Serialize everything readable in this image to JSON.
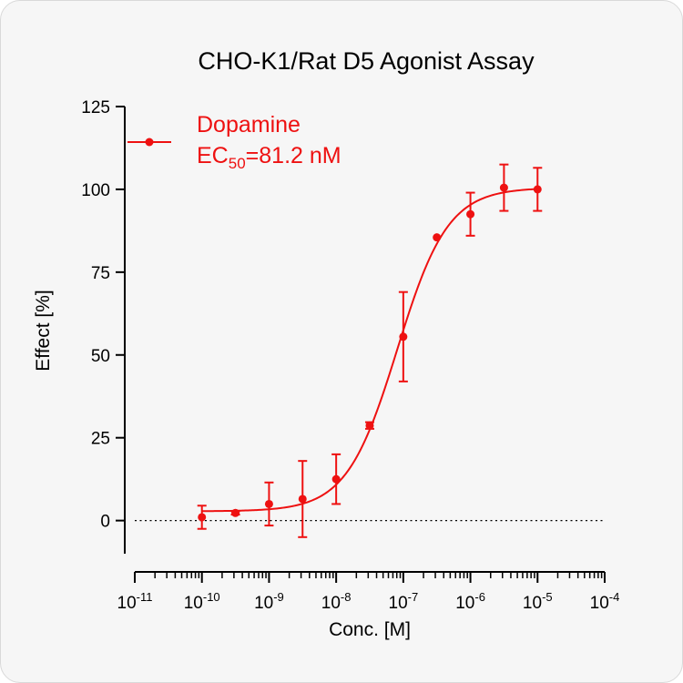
{
  "chart_data": {
    "type": "scatter",
    "title": "CHO-K1/Rat D5 Agonist Assay",
    "xlabel": "Conc. [M]",
    "ylabel": "Effect  [%]",
    "x_scale": "log",
    "xlim": [
      1e-11,
      0.0001
    ],
    "ylim": [
      -10,
      125
    ],
    "y_ticks": [
      0,
      25,
      50,
      75,
      100,
      125
    ],
    "x_major_ticks": [
      {
        "base": "10",
        "exp": "-11"
      },
      {
        "base": "10",
        "exp": "-10"
      },
      {
        "base": "10",
        "exp": "-9"
      },
      {
        "base": "10",
        "exp": "-8"
      },
      {
        "base": "10",
        "exp": "-7"
      },
      {
        "base": "10",
        "exp": "-6"
      },
      {
        "base": "10",
        "exp": "-5"
      },
      {
        "base": "10",
        "exp": "-4"
      }
    ],
    "reference_line": {
      "y": 0,
      "style": "dotted"
    },
    "color": "#ee1111",
    "legend_position": "top-left",
    "series": [
      {
        "name": "Dopamine",
        "ec50_label": {
          "prefix": "EC",
          "sub": "50",
          "suffix": "=81.2 nM"
        },
        "points": [
          {
            "x": 1e-10,
            "y": 1.0,
            "err": 3.5
          },
          {
            "x": 3.16e-10,
            "y": 2.3,
            "err": 0.5
          },
          {
            "x": 1e-09,
            "y": 5.0,
            "err": 6.5
          },
          {
            "x": 3.16e-09,
            "y": 6.5,
            "err": 11.5
          },
          {
            "x": 1e-08,
            "y": 12.5,
            "err": 7.5
          },
          {
            "x": 3.16e-08,
            "y": 28.7,
            "err": 1.0
          },
          {
            "x": 1e-07,
            "y": 55.5,
            "err": 13.5
          },
          {
            "x": 3.16e-07,
            "y": 85.5,
            "err": 0
          },
          {
            "x": 1e-06,
            "y": 92.5,
            "err": 6.5
          },
          {
            "x": 3.16e-06,
            "y": 100.5,
            "err": 7.0
          },
          {
            "x": 1e-05,
            "y": 100.0,
            "err": 6.5
          }
        ],
        "fit": {
          "bottom": 2.8,
          "top": 100.5,
          "log_ec50": -7.09,
          "hill": 1.15
        }
      }
    ]
  }
}
